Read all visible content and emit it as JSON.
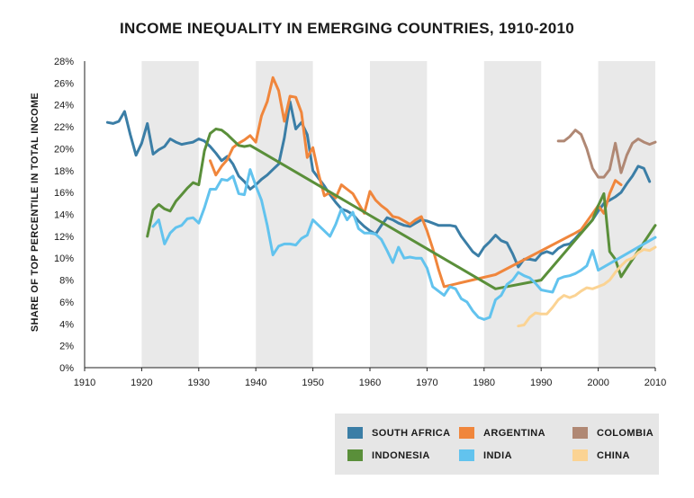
{
  "chart_data": {
    "type": "line",
    "title": "INCOME INEQUALITY IN EMERGING COUNTRIES, 1910-2010",
    "xlabel": "",
    "ylabel": "SHARE OF TOP PERCENTILE IN TOTAL INCOME",
    "xlim": [
      1910,
      2010
    ],
    "ylim": [
      0,
      28
    ],
    "x_ticks": [
      1910,
      1920,
      1930,
      1940,
      1950,
      1960,
      1970,
      1980,
      1990,
      2000,
      2010
    ],
    "x_tick_labels": [
      "1910",
      "1920",
      "1930",
      "1940",
      "1950",
      "1960",
      "1970",
      "1980",
      "1990",
      "2000",
      "2010"
    ],
    "y_ticks": [
      0,
      2,
      4,
      6,
      8,
      10,
      12,
      14,
      16,
      18,
      20,
      22,
      24,
      26,
      28
    ],
    "y_tick_labels": [
      "0%",
      "2%",
      "4%",
      "6%",
      "8%",
      "10%",
      "12%",
      "14%",
      "16%",
      "18%",
      "20%",
      "22%",
      "24%",
      "26%",
      "28%"
    ],
    "shaded_decades": [
      [
        1920,
        1930
      ],
      [
        1940,
        1950
      ],
      [
        1960,
        1970
      ],
      [
        1980,
        1990
      ],
      [
        2000,
        2010
      ]
    ],
    "legend_position": "bottom-right",
    "series": [
      {
        "name": "SOUTH AFRICA",
        "color": "#3b7ea6",
        "x": [
          1914,
          1915,
          1916,
          1917,
          1918,
          1919,
          1920,
          1921,
          1922,
          1923,
          1924,
          1925,
          1926,
          1927,
          1928,
          1929,
          1930,
          1931,
          1932,
          1933,
          1934,
          1935,
          1936,
          1937,
          1938,
          1939,
          1940,
          1941,
          1942,
          1943,
          1944,
          1945,
          1946,
          1947,
          1948,
          1949,
          1950,
          1951,
          1952,
          1953,
          1954,
          1955,
          1956,
          1957,
          1958,
          1959,
          1960,
          1961,
          1962,
          1963,
          1964,
          1965,
          1966,
          1967,
          1968,
          1969,
          1970,
          1971,
          1972,
          1973,
          1974,
          1975,
          1976,
          1977,
          1978,
          1979,
          1980,
          1981,
          1982,
          1983,
          1984,
          1985,
          1986,
          1987,
          1988,
          1989,
          1990,
          1991,
          1992,
          1993,
          1994,
          1995,
          1996,
          1997,
          1998,
          1999,
          2000,
          2001,
          2002,
          2003,
          2004,
          2005,
          2006,
          2007,
          2008,
          2009
        ],
        "values": [
          22.4,
          22.3,
          22.5,
          23.4,
          21.3,
          19.4,
          20.5,
          22.3,
          19.5,
          19.9,
          20.2,
          20.9,
          20.6,
          20.4,
          20.5,
          20.6,
          20.9,
          20.7,
          20.2,
          19.6,
          18.9,
          19.3,
          18.6,
          17.5,
          17.0,
          16.3,
          16.7,
          17.2,
          17.6,
          18.1,
          18.6,
          21.0,
          24.3,
          21.8,
          22.4,
          21.3,
          18.0,
          17.3,
          16.6,
          15.8,
          15.1,
          14.5,
          14.3,
          14.0,
          13.4,
          12.9,
          12.5,
          12.2,
          13.0,
          13.7,
          13.5,
          13.2,
          13.0,
          12.9,
          13.2,
          13.5,
          13.4,
          13.2,
          13.0,
          13.0,
          13.0,
          12.9,
          12.0,
          11.3,
          10.6,
          10.2,
          11.0,
          11.5,
          12.1,
          11.6,
          11.4,
          10.4,
          9.2,
          9.9,
          9.9,
          9.8,
          10.4,
          10.6,
          10.4,
          10.9,
          11.2,
          11.3,
          11.8,
          12.4,
          12.9,
          13.5,
          14.3,
          15.0,
          15.3,
          15.6,
          16.0,
          16.8,
          17.5,
          18.4,
          18.2,
          17.0
        ]
      },
      {
        "name": "ARGENTINA",
        "color": "#f0863c",
        "x": [
          1932,
          1933,
          1934,
          1935,
          1936,
          1937,
          1938,
          1939,
          1940,
          1941,
          1942,
          1943,
          1944,
          1945,
          1946,
          1947,
          1948,
          1949,
          1950,
          1951,
          1952,
          1953,
          1954,
          1955,
          1956,
          1957,
          1958,
          1959,
          1960,
          1961,
          1962,
          1963,
          1964,
          1965,
          1966,
          1967,
          1968,
          1969,
          1970,
          1971,
          1972,
          1973,
          1982,
          1996,
          1997,
          2000,
          2001,
          2002,
          2003,
          2004
        ],
        "values": [
          18.9,
          17.6,
          18.4,
          19.0,
          20.1,
          20.5,
          20.8,
          21.2,
          20.6,
          23.0,
          24.3,
          26.5,
          25.3,
          22.5,
          24.8,
          24.7,
          23.3,
          19.2,
          20.1,
          17.7,
          15.7,
          16.0,
          15.5,
          16.7,
          16.3,
          15.9,
          15.0,
          14.1,
          16.1,
          15.3,
          14.8,
          14.4,
          13.8,
          13.7,
          13.4,
          13.1,
          13.5,
          13.8,
          12.5,
          10.9,
          9.0,
          7.4,
          8.5,
          12.3,
          12.6,
          14.8,
          14.1,
          15.9,
          17.1,
          16.7
        ]
      },
      {
        "name": "COLOMBIA",
        "color": "#b08874",
        "x": [
          1993,
          1994,
          1995,
          1996,
          1997,
          1998,
          1999,
          2000,
          2001,
          2002,
          2003,
          2004,
          2005,
          2006,
          2007,
          2008,
          2009,
          2010
        ],
        "values": [
          20.7,
          20.7,
          21.1,
          21.7,
          21.3,
          20.0,
          18.2,
          17.4,
          17.4,
          18.1,
          20.5,
          17.8,
          19.4,
          20.5,
          20.9,
          20.6,
          20.4,
          20.6
        ]
      },
      {
        "name": "INDONESIA",
        "color": "#5a8f3a",
        "x": [
          1921,
          1922,
          1923,
          1924,
          1925,
          1926,
          1927,
          1928,
          1929,
          1930,
          1931,
          1932,
          1933,
          1934,
          1935,
          1936,
          1937,
          1938,
          1939,
          1940,
          1982,
          1990,
          1999,
          2000,
          2001,
          2002,
          2003,
          2004,
          2005,
          2010
        ],
        "values": [
          12.0,
          14.4,
          14.9,
          14.5,
          14.3,
          15.2,
          15.8,
          16.4,
          16.9,
          16.7,
          19.8,
          21.4,
          21.8,
          21.7,
          21.3,
          20.8,
          20.3,
          20.2,
          20.3,
          20.0,
          7.2,
          8.0,
          13.5,
          14.8,
          15.9,
          10.6,
          9.9,
          8.3,
          9.1,
          13.0
        ]
      },
      {
        "name": "INDIA",
        "color": "#62c3ee",
        "x": [
          1922,
          1923,
          1924,
          1925,
          1926,
          1927,
          1928,
          1929,
          1930,
          1931,
          1932,
          1933,
          1934,
          1935,
          1936,
          1937,
          1938,
          1939,
          1940,
          1941,
          1942,
          1943,
          1944,
          1945,
          1946,
          1947,
          1948,
          1949,
          1950,
          1951,
          1952,
          1953,
          1954,
          1955,
          1956,
          1957,
          1958,
          1959,
          1960,
          1961,
          1962,
          1963,
          1964,
          1965,
          1966,
          1967,
          1968,
          1969,
          1970,
          1971,
          1972,
          1973,
          1974,
          1975,
          1976,
          1977,
          1978,
          1979,
          1980,
          1981,
          1982,
          1983,
          1984,
          1985,
          1986,
          1987,
          1988,
          1989,
          1990,
          1991,
          1992,
          1993,
          1994,
          1995,
          1996,
          1997,
          1998,
          1999,
          2000,
          2010
        ],
        "values": [
          12.9,
          13.5,
          11.3,
          12.3,
          12.8,
          13.0,
          13.6,
          13.7,
          13.2,
          14.6,
          16.3,
          16.3,
          17.2,
          17.1,
          17.5,
          15.9,
          15.8,
          18.1,
          16.6,
          15.3,
          13.0,
          10.3,
          11.1,
          11.3,
          11.3,
          11.2,
          11.8,
          12.1,
          13.5,
          13.0,
          12.5,
          12.0,
          13.1,
          14.5,
          13.5,
          14.2,
          12.7,
          12.3,
          12.3,
          12.2,
          11.7,
          10.7,
          9.6,
          11.0,
          10.0,
          10.1,
          10.0,
          10.0,
          9.1,
          7.4,
          7.0,
          6.6,
          7.4,
          7.2,
          6.3,
          6.0,
          5.2,
          4.6,
          4.4,
          4.6,
          6.2,
          6.6,
          7.6,
          8.0,
          8.7,
          8.4,
          8.2,
          7.7,
          7.1,
          7.0,
          6.9,
          8.1,
          8.3,
          8.4,
          8.6,
          8.9,
          9.3,
          10.7,
          8.9,
          11.9
        ]
      },
      {
        "name": "CHINA",
        "color": "#fbd393",
        "x": [
          1986,
          1987,
          1988,
          1989,
          1990,
          1991,
          1992,
          1993,
          1994,
          1995,
          1996,
          1997,
          1998,
          1999,
          2000,
          2001,
          2002,
          2003,
          2004,
          2005,
          2006,
          2007,
          2008,
          2009,
          2010
        ],
        "values": [
          3.8,
          3.9,
          4.6,
          5.0,
          4.9,
          4.9,
          5.5,
          6.2,
          6.6,
          6.4,
          6.6,
          7.0,
          7.3,
          7.2,
          7.4,
          7.6,
          8.0,
          8.7,
          9.3,
          9.8,
          10.0,
          10.5,
          10.8,
          10.7,
          11.0
        ]
      }
    ]
  },
  "legend": [
    {
      "label": "SOUTH AFRICA",
      "color": "#3b7ea6"
    },
    {
      "label": "ARGENTINA",
      "color": "#f0863c"
    },
    {
      "label": "COLOMBIA",
      "color": "#b08874"
    },
    {
      "label": "INDONESIA",
      "color": "#5a8f3a"
    },
    {
      "label": "INDIA",
      "color": "#62c3ee"
    },
    {
      "label": "CHINA",
      "color": "#fbd393"
    }
  ]
}
